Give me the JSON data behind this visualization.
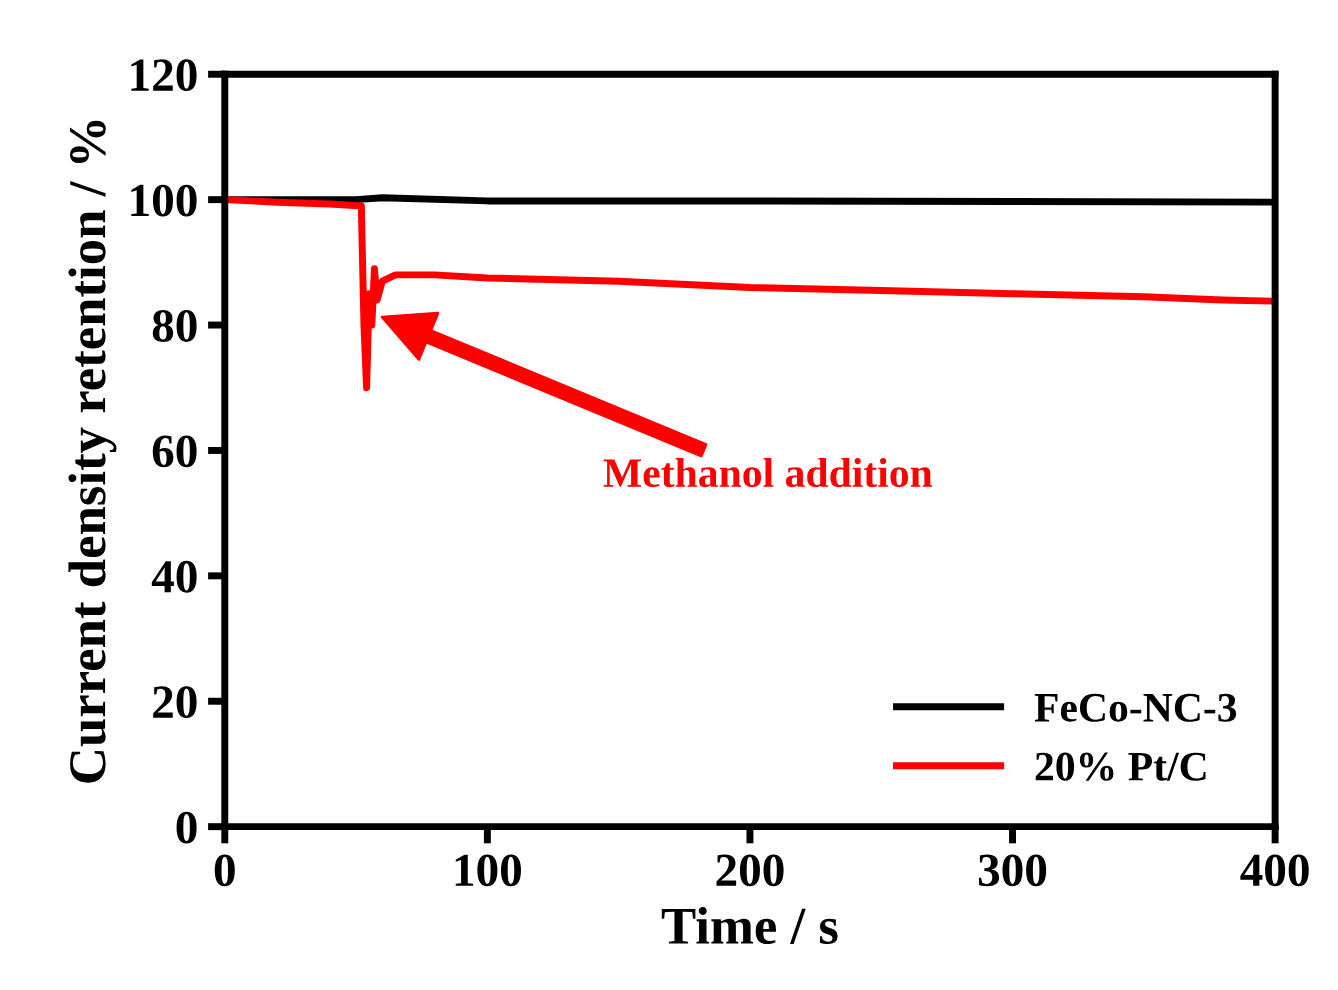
{
  "chart_data": {
    "type": "line",
    "xlabel": "Time / s",
    "ylabel": "Current density retention / %",
    "xlim": [
      0,
      400
    ],
    "ylim": [
      0,
      120
    ],
    "xticks": [
      0,
      100,
      200,
      300,
      400
    ],
    "yticks": [
      0,
      20,
      40,
      60,
      80,
      100,
      120
    ],
    "legend": "bottom right",
    "grid": false,
    "series": [
      {
        "name": "FeCo-NC-3",
        "color": "#000000",
        "x": [
          0,
          50,
          60,
          100,
          200,
          300,
          400
        ],
        "values": [
          100,
          100,
          100.3,
          99.8,
          99.8,
          99.7,
          99.6
        ]
      },
      {
        "name": "20% Pt/C",
        "color": "#ff0000",
        "x": [
          0,
          20,
          40,
          52,
          53,
          54,
          55,
          56,
          57,
          58,
          60,
          65,
          80,
          100,
          150,
          200,
          250,
          300,
          350,
          380,
          400
        ],
        "values": [
          100,
          99.6,
          99.3,
          99,
          80,
          70,
          85,
          80,
          89,
          84,
          87,
          88,
          88,
          87.5,
          87,
          86,
          85.5,
          85,
          84.5,
          84,
          83.8
        ]
      }
    ],
    "annotations": [
      "Methanol addition"
    ]
  }
}
